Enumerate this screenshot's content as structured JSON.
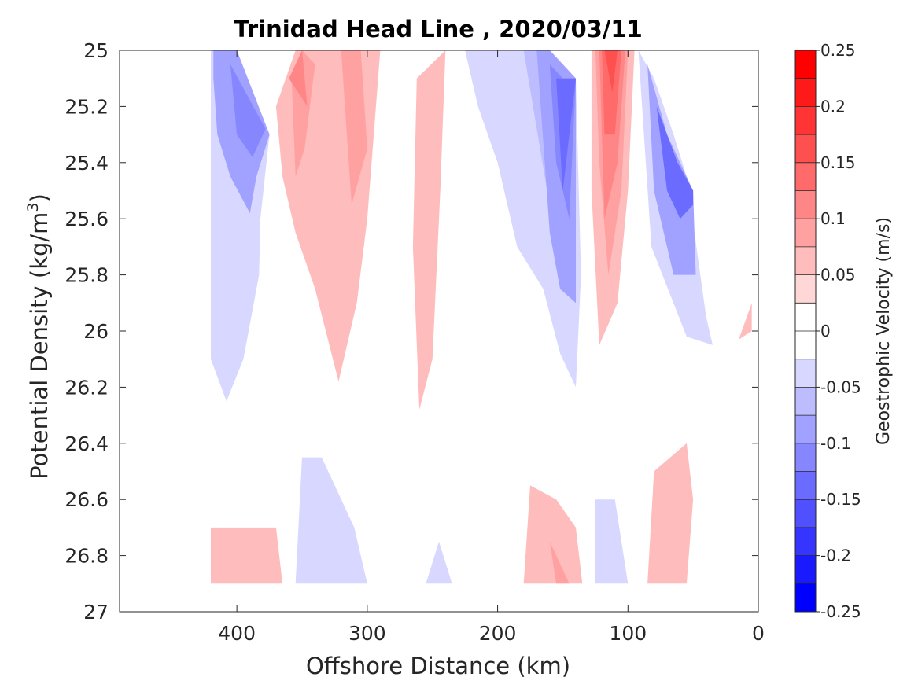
{
  "chart_data": {
    "type": "contour",
    "title": "Trinidad Head Line , 2020/03/11",
    "xlabel": "Offshore Distance (km)",
    "ylabel": "Potential Density (kg/m",
    "ylabel_sup": "3",
    "ylabel_close": ")",
    "colorbar_label": "Geostrophic Velocity (m/s)",
    "xlim": [
      490,
      0
    ],
    "ylim": [
      25,
      27
    ],
    "x_ticks": [
      400,
      300,
      200,
      100,
      0
    ],
    "x_tick_labels": [
      "400",
      "300",
      "200",
      "100",
      "0"
    ],
    "y_ticks": [
      25,
      25.2,
      25.4,
      25.6,
      25.8,
      26,
      26.2,
      26.4,
      26.6,
      26.8,
      27
    ],
    "y_tick_labels": [
      "25",
      "25.2",
      "25.4",
      "25.6",
      "25.8",
      "26",
      "26.2",
      "26.4",
      "26.6",
      "26.8",
      "27"
    ],
    "colorbar": {
      "min": -0.25,
      "max": 0.25,
      "levels": [
        -0.25,
        -0.225,
        -0.2,
        -0.175,
        -0.15,
        -0.125,
        -0.1,
        -0.075,
        -0.05,
        -0.025,
        0,
        0.025,
        0.05,
        0.075,
        0.1,
        0.125,
        0.15,
        0.175,
        0.2,
        0.225,
        0.25
      ],
      "ticks": [
        0.25,
        0.2,
        0.15,
        0.1,
        0.05,
        0,
        -0.05,
        -0.1,
        -0.15,
        -0.2,
        -0.25
      ],
      "tick_labels": [
        "0.25",
        "0.2",
        "0.15",
        "0.1",
        "0.05",
        "0",
        "-0.05",
        "-0.1",
        "-0.15",
        "-0.2",
        "-0.25"
      ],
      "colors": [
        "#0000ff",
        "#1a1aff",
        "#3535ff",
        "#5050ff",
        "#6b6bff",
        "#8686ff",
        "#a1a1ff",
        "#bcbcff",
        "#d7d7ff",
        "#ffffff",
        "#ffffff",
        "#ffd7d7",
        "#ffbcbc",
        "#ffa1a1",
        "#ff8686",
        "#ff6b6b",
        "#ff5050",
        "#ff3535",
        "#ff1a1a",
        "#ff0000"
      ]
    },
    "regions": [
      {
        "v": -0.05,
        "pts": [
          [
            420,
            25
          ],
          [
            400,
            25
          ],
          [
            375,
            25.3
          ],
          [
            382,
            25.6
          ],
          [
            383,
            25.8
          ],
          [
            387,
            25.9
          ],
          [
            395,
            26.1
          ],
          [
            408,
            26.25
          ],
          [
            420,
            26.1
          ]
        ]
      },
      {
        "v": -0.1,
        "pts": [
          [
            418,
            25
          ],
          [
            400,
            25
          ],
          [
            375,
            25.3
          ],
          [
            385,
            25.45
          ],
          [
            390,
            25.58
          ],
          [
            405,
            25.45
          ],
          [
            415,
            25.3
          ],
          [
            418,
            25.1
          ]
        ]
      },
      {
        "v": -0.125,
        "pts": [
          [
            405,
            25.05
          ],
          [
            378,
            25.28
          ],
          [
            388,
            25.38
          ],
          [
            400,
            25.3
          ]
        ]
      },
      {
        "v": 0.05,
        "pts": [
          [
            370,
            25.2
          ],
          [
            355,
            25
          ],
          [
            290,
            25
          ],
          [
            300,
            25.6
          ],
          [
            308,
            25.9
          ],
          [
            322,
            26.18
          ],
          [
            340,
            25.85
          ],
          [
            355,
            25.65
          ],
          [
            365,
            25.45
          ]
        ]
      },
      {
        "v": 0.075,
        "pts": [
          [
            358,
            25.1
          ],
          [
            350,
            25
          ],
          [
            340,
            25.05
          ],
          [
            348,
            25.35
          ],
          [
            355,
            25.45
          ]
        ]
      },
      {
        "v": 0.075,
        "pts": [
          [
            305,
            25
          ],
          [
            320,
            25
          ],
          [
            312,
            25.55
          ],
          [
            300,
            25.35
          ]
        ]
      },
      {
        "v": 0.1,
        "pts": [
          [
            360,
            25.1
          ],
          [
            350,
            25
          ],
          [
            346,
            25.2
          ]
        ]
      },
      {
        "v": 0.05,
        "pts": [
          [
            240,
            25
          ],
          [
            262,
            25.1
          ],
          [
            265,
            25.7
          ],
          [
            260,
            26.28
          ],
          [
            250,
            26.1
          ],
          [
            244,
            25.5
          ]
        ]
      },
      {
        "v": -0.05,
        "pts": [
          [
            225,
            25
          ],
          [
            180,
            25
          ],
          [
            160,
            25
          ],
          [
            140,
            25.1
          ],
          [
            136,
            25.8
          ],
          [
            140,
            26.2
          ],
          [
            152,
            26.08
          ],
          [
            165,
            25.85
          ],
          [
            185,
            25.7
          ],
          [
            200,
            25.4
          ],
          [
            215,
            25.2
          ]
        ]
      },
      {
        "v": -0.075,
        "pts": [
          [
            180,
            25
          ],
          [
            160,
            25
          ],
          [
            140,
            25.1
          ],
          [
            140,
            25.8
          ],
          [
            155,
            25.75
          ],
          [
            162,
            25.5
          ]
        ]
      },
      {
        "v": -0.1,
        "pts": [
          [
            170,
            25
          ],
          [
            160,
            25
          ],
          [
            140,
            25.1
          ],
          [
            140,
            25.9
          ],
          [
            152,
            25.85
          ],
          [
            160,
            25.65
          ]
        ]
      },
      {
        "v": -0.125,
        "pts": [
          [
            160,
            25.05
          ],
          [
            150,
            25.1
          ],
          [
            140,
            25.1
          ],
          [
            145,
            25.6
          ],
          [
            155,
            25.4
          ]
        ]
      },
      {
        "v": -0.15,
        "pts": [
          [
            155,
            25.1
          ],
          [
            140,
            25.1
          ],
          [
            145,
            25.3
          ],
          [
            150,
            25.5
          ]
        ]
      },
      {
        "v": 0.05,
        "pts": [
          [
            128,
            25
          ],
          [
            95,
            25
          ],
          [
            100,
            25.5
          ],
          [
            108,
            25.9
          ],
          [
            122,
            26.05
          ],
          [
            128,
            25.5
          ]
        ]
      },
      {
        "v": 0.075,
        "pts": [
          [
            125,
            25
          ],
          [
            100,
            25
          ],
          [
            105,
            25.5
          ],
          [
            115,
            25.8
          ],
          [
            122,
            25.4
          ]
        ]
      },
      {
        "v": 0.1,
        "pts": [
          [
            122,
            25
          ],
          [
            102,
            25
          ],
          [
            108,
            25.4
          ],
          [
            118,
            25.6
          ]
        ]
      },
      {
        "v": 0.125,
        "pts": [
          [
            120,
            25
          ],
          [
            105,
            25
          ],
          [
            110,
            25.3
          ],
          [
            118,
            25.3
          ]
        ]
      },
      {
        "v": 0.15,
        "pts": [
          [
            118,
            25
          ],
          [
            108,
            25
          ],
          [
            112,
            25.15
          ]
        ]
      },
      {
        "v": -0.05,
        "pts": [
          [
            92,
            25
          ],
          [
            80,
            25.1
          ],
          [
            65,
            25.3
          ],
          [
            55,
            25.45
          ],
          [
            40,
            25.95
          ],
          [
            35,
            26.05
          ],
          [
            55,
            26.02
          ],
          [
            82,
            25.7
          ]
        ]
      },
      {
        "v": -0.1,
        "pts": [
          [
            85,
            25.05
          ],
          [
            70,
            25.3
          ],
          [
            50,
            25.5
          ],
          [
            48,
            25.8
          ],
          [
            65,
            25.8
          ],
          [
            80,
            25.5
          ]
        ]
      },
      {
        "v": -0.15,
        "pts": [
          [
            78,
            25.2
          ],
          [
            62,
            25.4
          ],
          [
            50,
            25.5
          ],
          [
            50,
            25.55
          ],
          [
            60,
            25.6
          ],
          [
            70,
            25.5
          ]
        ]
      },
      {
        "v": 0.05,
        "pts": [
          [
            15,
            26.03
          ],
          [
            5,
            25.9
          ],
          [
            5,
            26.0
          ]
        ]
      },
      {
        "v": 0.05,
        "pts": [
          [
            420,
            26.7
          ],
          [
            370,
            26.7
          ],
          [
            365,
            26.9
          ],
          [
            420,
            26.9
          ]
        ]
      },
      {
        "v": -0.05,
        "pts": [
          [
            350,
            26.45
          ],
          [
            335,
            26.45
          ],
          [
            310,
            26.7
          ],
          [
            300,
            26.9
          ],
          [
            355,
            26.9
          ]
        ]
      },
      {
        "v": -0.05,
        "pts": [
          [
            245,
            26.75
          ],
          [
            235,
            26.9
          ],
          [
            255,
            26.9
          ]
        ]
      },
      {
        "v": 0.05,
        "pts": [
          [
            175,
            26.55
          ],
          [
            155,
            26.6
          ],
          [
            140,
            26.7
          ],
          [
            135,
            26.9
          ],
          [
            180,
            26.9
          ]
        ]
      },
      {
        "v": 0.075,
        "pts": [
          [
            160,
            26.75
          ],
          [
            145,
            26.9
          ],
          [
            155,
            26.9
          ]
        ]
      },
      {
        "v": -0.05,
        "pts": [
          [
            125,
            26.6
          ],
          [
            110,
            26.6
          ],
          [
            100,
            26.9
          ],
          [
            125,
            26.9
          ]
        ]
      },
      {
        "v": 0.05,
        "pts": [
          [
            80,
            26.5
          ],
          [
            55,
            26.4
          ],
          [
            50,
            26.6
          ],
          [
            55,
            26.9
          ],
          [
            85,
            26.9
          ]
        ]
      }
    ]
  }
}
